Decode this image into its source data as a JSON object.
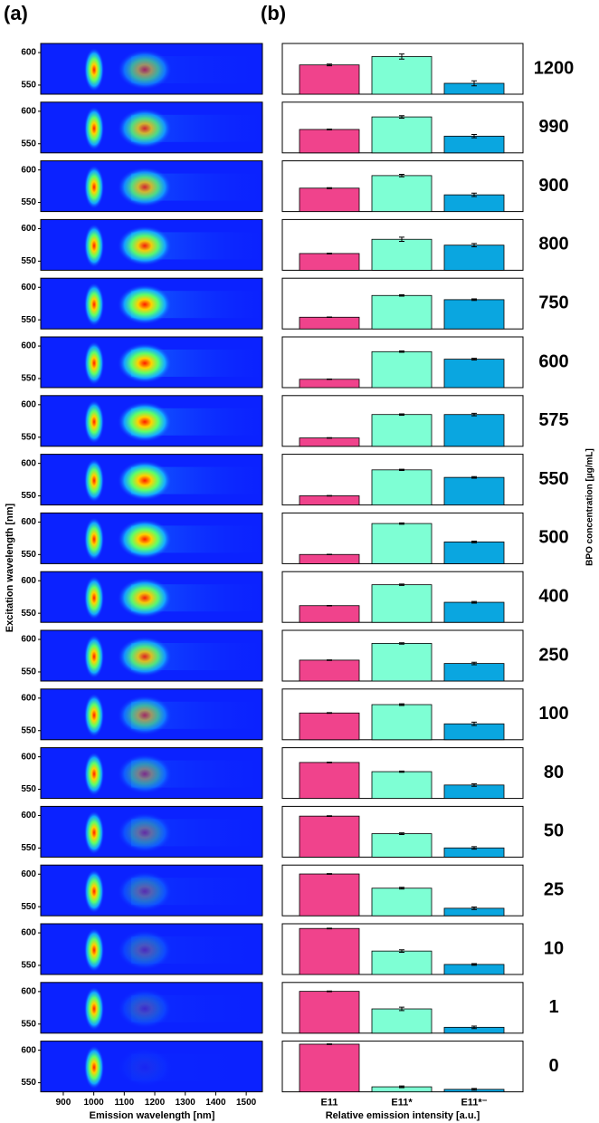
{
  "chart_data": [
    {
      "type": "heatmap",
      "panel_label": "(a)",
      "xlabel": "Emission wavelength [nm]",
      "ylabel": "Excitation wavelength [nm]",
      "xlim": [
        826,
        1553
      ],
      "xticks": [
        900,
        1000,
        1100,
        1200,
        1300,
        1400,
        1500
      ],
      "ylim": [
        536,
        614
      ],
      "yticks": [
        550,
        600
      ]
    },
    {
      "type": "bar",
      "panel_label": "(b)",
      "xlabel": "Relative emission intensity [a.u.]",
      "ylabel": "BPO concentration [µg/mL]",
      "categories": [
        "E11",
        "E11*",
        "E11*⁻"
      ],
      "colors": [
        "#f0438c",
        "#7effd4",
        "#0aa6e0"
      ],
      "groups": [
        {
          "name": "1200",
          "values": [
            35,
            45,
            13
          ],
          "errors": [
            1,
            3,
            3
          ]
        },
        {
          "name": "990",
          "values": [
            28,
            43,
            20
          ],
          "errors": [
            0.5,
            1.5,
            2
          ]
        },
        {
          "name": "900",
          "values": [
            28,
            43,
            20
          ],
          "errors": [
            0.5,
            1.5,
            2
          ]
        },
        {
          "name": "800",
          "values": [
            20,
            37,
            30
          ],
          "errors": [
            0.5,
            2.5,
            2
          ]
        },
        {
          "name": "750",
          "values": [
            14,
            40,
            35
          ],
          "errors": [
            0.3,
            0.8,
            1
          ]
        },
        {
          "name": "600",
          "values": [
            10,
            43,
            34
          ],
          "errors": [
            0.3,
            0.8,
            1
          ]
        },
        {
          "name": "575",
          "values": [
            10,
            38,
            38
          ],
          "errors": [
            0.3,
            0.8,
            1.5
          ]
        },
        {
          "name": "550",
          "values": [
            11,
            42,
            33
          ],
          "errors": [
            0.3,
            0.8,
            1
          ]
        },
        {
          "name": "500",
          "values": [
            11,
            48,
            26
          ],
          "errors": [
            0.3,
            0.8,
            1
          ]
        },
        {
          "name": "400",
          "values": [
            20,
            45,
            24
          ],
          "errors": [
            0.3,
            0.8,
            1
          ]
        },
        {
          "name": "250",
          "values": [
            25,
            45,
            21
          ],
          "errors": [
            0.3,
            0.8,
            1.5
          ]
        },
        {
          "name": "100",
          "values": [
            32,
            42,
            19
          ],
          "errors": [
            0.4,
            1,
            2
          ]
        },
        {
          "name": "80",
          "values": [
            43,
            32,
            16
          ],
          "errors": [
            0.4,
            0.8,
            1.5
          ]
        },
        {
          "name": "50",
          "values": [
            49,
            28,
            11
          ],
          "errors": [
            0.4,
            1,
            1.5
          ]
        },
        {
          "name": "25",
          "values": [
            50,
            33,
            9
          ],
          "errors": [
            0.4,
            1,
            1.5
          ]
        },
        {
          "name": "10",
          "values": [
            55,
            28,
            12
          ],
          "errors": [
            0.4,
            1.5,
            1
          ]
        },
        {
          "name": "1",
          "values": [
            50,
            29,
            7
          ],
          "errors": [
            0.4,
            2,
            1.5
          ]
        },
        {
          "name": "0",
          "values": [
            57,
            6,
            3
          ],
          "errors": [
            0.4,
            1,
            1
          ]
        }
      ]
    }
  ]
}
